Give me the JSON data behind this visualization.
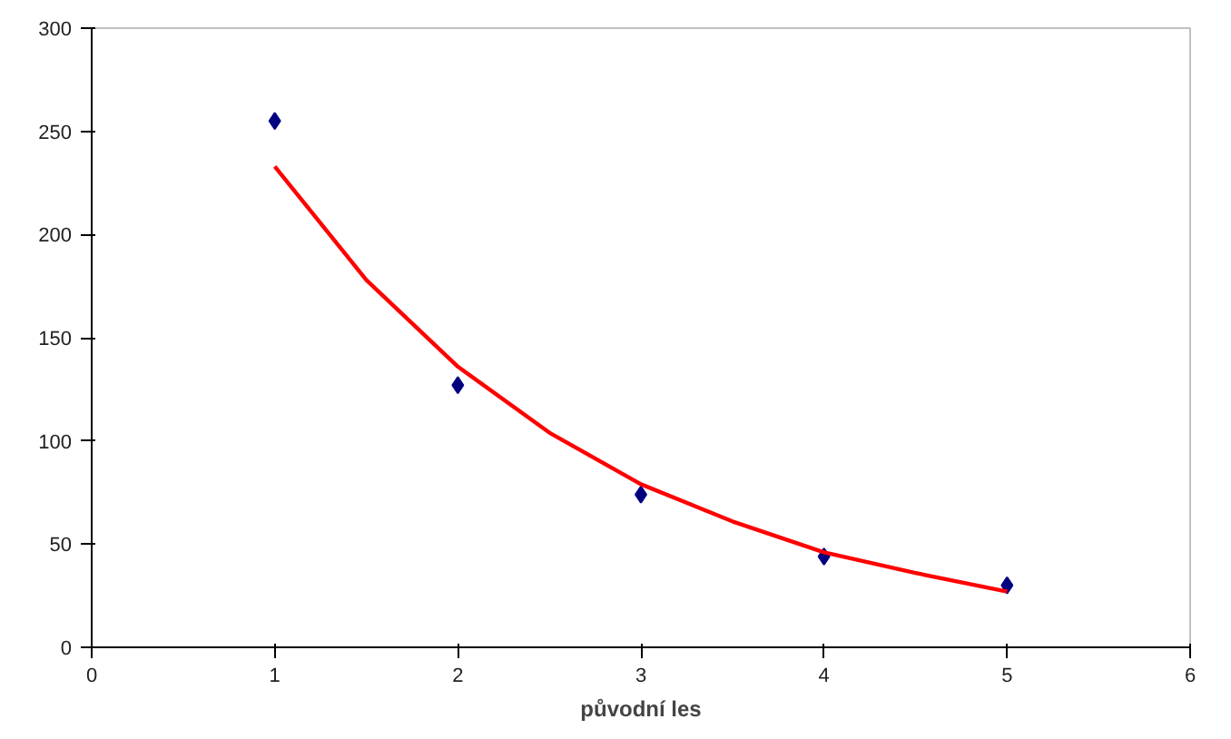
{
  "chart_data": {
    "type": "scatter",
    "xlabel": "původní les",
    "xlim": [
      0,
      6
    ],
    "xticks": [
      0,
      1,
      2,
      3,
      4,
      5,
      6
    ],
    "ylim": [
      0,
      300
    ],
    "yticks": [
      0,
      50,
      100,
      150,
      200,
      250,
      300
    ],
    "grid": false,
    "marker": "diamond",
    "series": [
      {
        "color": "#000080",
        "x": [
          1,
          2,
          3,
          4,
          5
        ],
        "values": [
          255,
          127,
          74,
          44,
          30
        ]
      },
      {
        "type": "line",
        "color": "#ff0000",
        "marker": "none",
        "line_style": "solid",
        "x": [
          1,
          1.5,
          2,
          2.5,
          3,
          3.5,
          4,
          4.5,
          5
        ],
        "values": [
          233,
          178,
          136,
          104,
          79,
          61,
          46,
          36,
          27
        ]
      }
    ]
  }
}
